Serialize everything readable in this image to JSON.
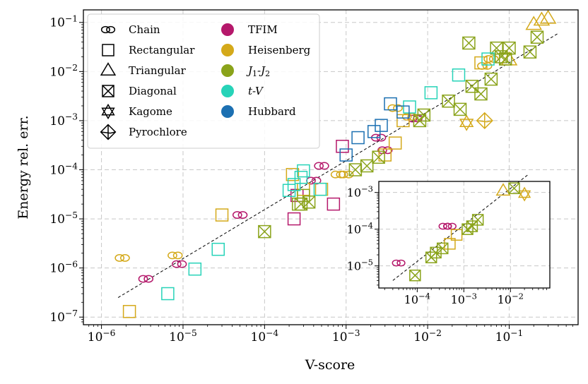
{
  "chart_data": {
    "type": "scatter",
    "title": "",
    "xlabel": "V-score",
    "ylabel": "Energy rel. err.",
    "xscale": "log",
    "yscale": "log",
    "xlim": [
      6e-07,
      0.7
    ],
    "ylim": [
      7e-08,
      0.18
    ],
    "x_ticks": [
      {
        "base": "10",
        "exp": "−6",
        "value": 1e-06
      },
      {
        "base": "10",
        "exp": "−5",
        "value": 1e-05
      },
      {
        "base": "10",
        "exp": "−4",
        "value": 0.0001
      },
      {
        "base": "10",
        "exp": "−3",
        "value": 0.001
      },
      {
        "base": "10",
        "exp": "−2",
        "value": 0.01
      },
      {
        "base": "10",
        "exp": "−1",
        "value": 0.1
      }
    ],
    "y_ticks": [
      {
        "base": "10",
        "exp": "−7",
        "value": 1e-07
      },
      {
        "base": "10",
        "exp": "−6",
        "value": 1e-06
      },
      {
        "base": "10",
        "exp": "−5",
        "value": 1e-05
      },
      {
        "base": "10",
        "exp": "−4",
        "value": 0.0001
      },
      {
        "base": "10",
        "exp": "−3",
        "value": 0.001
      },
      {
        "base": "10",
        "exp": "−2",
        "value": 0.01
      },
      {
        "base": "10",
        "exp": "−1",
        "value": 0.1
      }
    ],
    "grid": true,
    "legend_placement": "top-left",
    "legend_shapes": [
      {
        "label": "Chain",
        "marker": "chain"
      },
      {
        "label": "Rectangular",
        "marker": "square"
      },
      {
        "label": "Triangular",
        "marker": "triangle"
      },
      {
        "label": "Diagonal",
        "marker": "diagonal"
      },
      {
        "label": "Kagome",
        "marker": "kagome"
      },
      {
        "label": "Pyrochlore",
        "marker": "pyrochlore"
      }
    ],
    "legend_models": [
      {
        "label": "TFIM",
        "color": "#b5186b"
      },
      {
        "label": "Heisenberg",
        "color": "#d4a91a"
      },
      {
        "label": "J1-J2",
        "label_parts": [
          "J",
          "1",
          "-J",
          "2"
        ],
        "color": "#8aa31a"
      },
      {
        "label": "t-V",
        "label_parts": [
          "t",
          "-V"
        ],
        "color": "#27d3b8"
      },
      {
        "label": "Hubbard",
        "color": "#1c70b2"
      }
    ],
    "fit_line": {
      "style": "dashed",
      "color": "#000000",
      "x": [
        1.6e-06,
        0.4
      ],
      "y": [
        2.5e-07,
        0.06
      ]
    },
    "series": [
      {
        "model": "TFIM",
        "shape": "chain",
        "x": [
          3.5e-06,
          9e-06,
          5e-05,
          0.0004,
          0.0005,
          0.003,
          0.0025,
          0.007
        ],
        "y": [
          6e-07,
          1.2e-06,
          1.2e-05,
          6e-05,
          0.00012,
          0.00025,
          0.00045,
          0.0011
        ]
      },
      {
        "model": "TFIM",
        "shape": "square",
        "x": [
          0.00023,
          0.0007,
          0.0009,
          0.00025
        ],
        "y": [
          1e-05,
          2e-05,
          0.0003,
          3e-05
        ]
      },
      {
        "model": "Heisenberg",
        "shape": "chain",
        "x": [
          1.8e-06,
          8e-06,
          0.0008,
          0.001,
          0.004,
          0.006,
          0.05,
          0.06
        ],
        "y": [
          1.6e-06,
          1.8e-06,
          8e-05,
          8e-05,
          0.0018,
          0.0012,
          0.013,
          0.018
        ]
      },
      {
        "model": "Heisenberg",
        "shape": "square",
        "x": [
          2.2e-06,
          3e-05,
          0.00022,
          0.0003,
          0.0005,
          0.003,
          0.004,
          0.005,
          0.045
        ],
        "y": [
          1.3e-07,
          1.2e-05,
          8e-05,
          4e-05,
          4e-05,
          0.0002,
          0.00035,
          0.001,
          0.015
        ]
      },
      {
        "model": "Heisenberg",
        "shape": "triangle",
        "x": [
          0.1,
          0.2,
          0.25,
          0.3
        ],
        "y": [
          0.017,
          0.09,
          0.11,
          0.12
        ]
      },
      {
        "model": "Heisenberg",
        "shape": "kagome",
        "x": [
          0.03
        ],
        "y": [
          0.0009
        ]
      },
      {
        "model": "Heisenberg",
        "shape": "pyrochlore",
        "x": [
          0.05
        ],
        "y": [
          0.001
        ]
      },
      {
        "model": "J1-J2",
        "shape": "diagonal",
        "x": [
          0.0001,
          0.00028,
          0.00035,
          0.0013,
          0.0018,
          0.0025,
          0.008,
          0.009,
          0.018,
          0.025,
          0.032,
          0.035,
          0.045,
          0.06,
          0.07,
          0.08,
          0.09,
          0.1,
          0.18,
          0.22
        ],
        "y": [
          5.5e-06,
          2e-05,
          2.2e-05,
          0.0001,
          0.00012,
          0.00018,
          0.001,
          0.0013,
          0.0025,
          0.0017,
          0.038,
          0.005,
          0.0035,
          0.007,
          0.03,
          0.02,
          0.018,
          0.03,
          0.025,
          0.05
        ]
      },
      {
        "model": "J1-J2",
        "shape": "square",
        "x": [
          0.00026,
          0.0003
        ],
        "y": [
          2e-05,
          3e-05
        ]
      },
      {
        "model": "t-V",
        "shape": "square",
        "x": [
          6.5e-06,
          1.4e-05,
          2.7e-05,
          0.0002,
          0.00023,
          0.00028,
          0.0003,
          0.00048,
          0.006,
          0.011,
          0.024,
          0.055
        ],
        "y": [
          3e-07,
          9.5e-07,
          2.4e-06,
          3.8e-05,
          5e-05,
          7e-05,
          9.5e-05,
          4e-05,
          0.0019,
          0.0037,
          0.0085,
          0.018
        ]
      },
      {
        "model": "Hubbard",
        "shape": "square",
        "x": [
          0.001,
          0.0014,
          0.0022,
          0.0027,
          0.0035,
          0.005
        ],
        "y": [
          0.0002,
          0.00045,
          0.0006,
          0.0008,
          0.0022,
          0.0015
        ]
      }
    ],
    "inset": {
      "xlim": [
        1.5e-05,
        0.07
      ],
      "ylim": [
        2.5e-06,
        0.002
      ],
      "x_ticks": [
        {
          "base": "10",
          "exp": "−4",
          "value": 0.0001
        },
        {
          "base": "10",
          "exp": "−3",
          "value": 0.001
        },
        {
          "base": "10",
          "exp": "−2",
          "value": 0.01
        }
      ],
      "y_ticks": [
        {
          "base": "10",
          "exp": "−5",
          "value": 1e-05
        },
        {
          "base": "10",
          "exp": "−4",
          "value": 0.0001
        },
        {
          "base": "10",
          "exp": "−3",
          "value": 0.001
        }
      ],
      "fit_line": {
        "x": [
          3e-05,
          0.025
        ],
        "y": [
          4e-06,
          0.0032
        ]
      },
      "series": [
        {
          "model": "TFIM",
          "shape": "chain",
          "x": [
            4e-05,
            0.0004,
            0.0005
          ],
          "y": [
            1.2e-05,
            0.00012,
            0.00012
          ]
        },
        {
          "model": "Heisenberg",
          "shape": "square",
          "x": [
            0.0005,
            0.0007
          ],
          "y": [
            4e-05,
            7e-05
          ]
        },
        {
          "model": "Heisenberg",
          "shape": "triangle",
          "x": [
            0.007
          ],
          "y": [
            0.0011
          ]
        },
        {
          "model": "Heisenberg",
          "shape": "kagome",
          "x": [
            0.02
          ],
          "y": [
            0.0009
          ]
        },
        {
          "model": "J1-J2",
          "shape": "diagonal",
          "x": [
            9e-05,
            0.0002,
            0.00025,
            0.00035,
            0.0012,
            0.0015,
            0.002,
            0.012
          ],
          "y": [
            5.5e-06,
            1.7e-05,
            2.3e-05,
            3e-05,
            0.0001,
            0.00012,
            0.00018,
            0.0013
          ]
        }
      ]
    }
  }
}
